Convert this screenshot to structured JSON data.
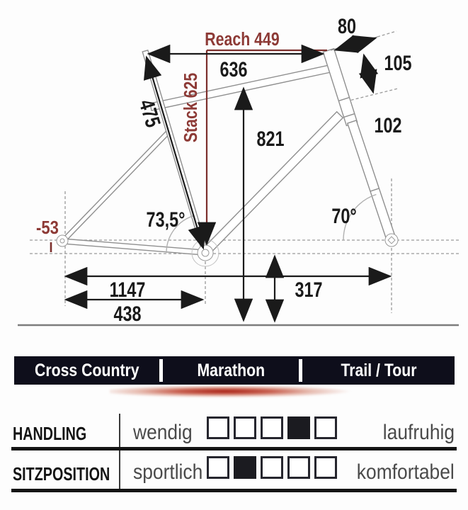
{
  "accent": {
    "red": "#8d3a36",
    "bar_bg": "#0e0e1b"
  },
  "geometry": {
    "reach": "Reach 449",
    "stack": "Stack 625",
    "top_tube_horizontal": "636",
    "seat_tube": "475",
    "standover_height": "821",
    "stem_length": "80",
    "head_tube_top": "105",
    "head_tube": "102",
    "seat_tube_angle": "73,5°",
    "steering_angle": "70°",
    "wheelbase": "1147",
    "chainstay_length": "438",
    "bb_height": "317",
    "bb_drop": "-53"
  },
  "categories": {
    "items": [
      "Cross Country",
      "Marathon",
      "Trail / Tour"
    ]
  },
  "ratings": [
    {
      "name": "HANDLING",
      "left_label": "wendig",
      "right_label": "laufruhig",
      "box_count": 5,
      "filled_index": 3
    },
    {
      "name": "SITZPOSITION",
      "left_label": "sportlich",
      "right_label": "komfortabel",
      "box_count": 5,
      "filled_index": 1
    }
  ]
}
